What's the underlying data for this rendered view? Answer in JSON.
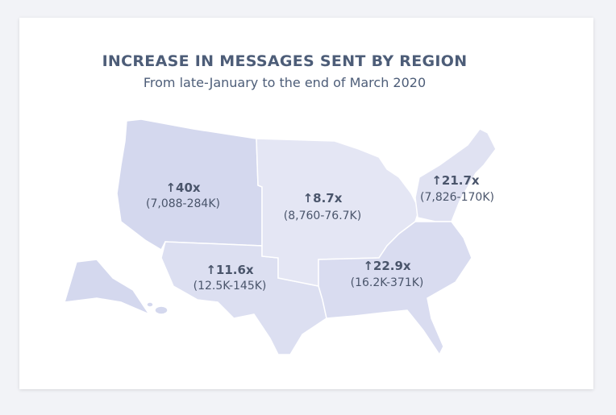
{
  "header": {
    "title": "INCREASE IN MESSAGES SENT BY REGION",
    "subtitle": "From late-January to the end of March 2020"
  },
  "regions": [
    {
      "increase": "↑40x",
      "range": "(7,088-284K)"
    },
    {
      "increase": "↑8.7x",
      "range": "(8,760-76.7K)"
    },
    {
      "increase": "↑21.7x",
      "range": "(7,826-170K)"
    },
    {
      "increase": "↑11.6x",
      "range": "(12.5K-145K)"
    },
    {
      "increase": "↑22.9x",
      "range": "(16.2K-371K)"
    }
  ]
}
